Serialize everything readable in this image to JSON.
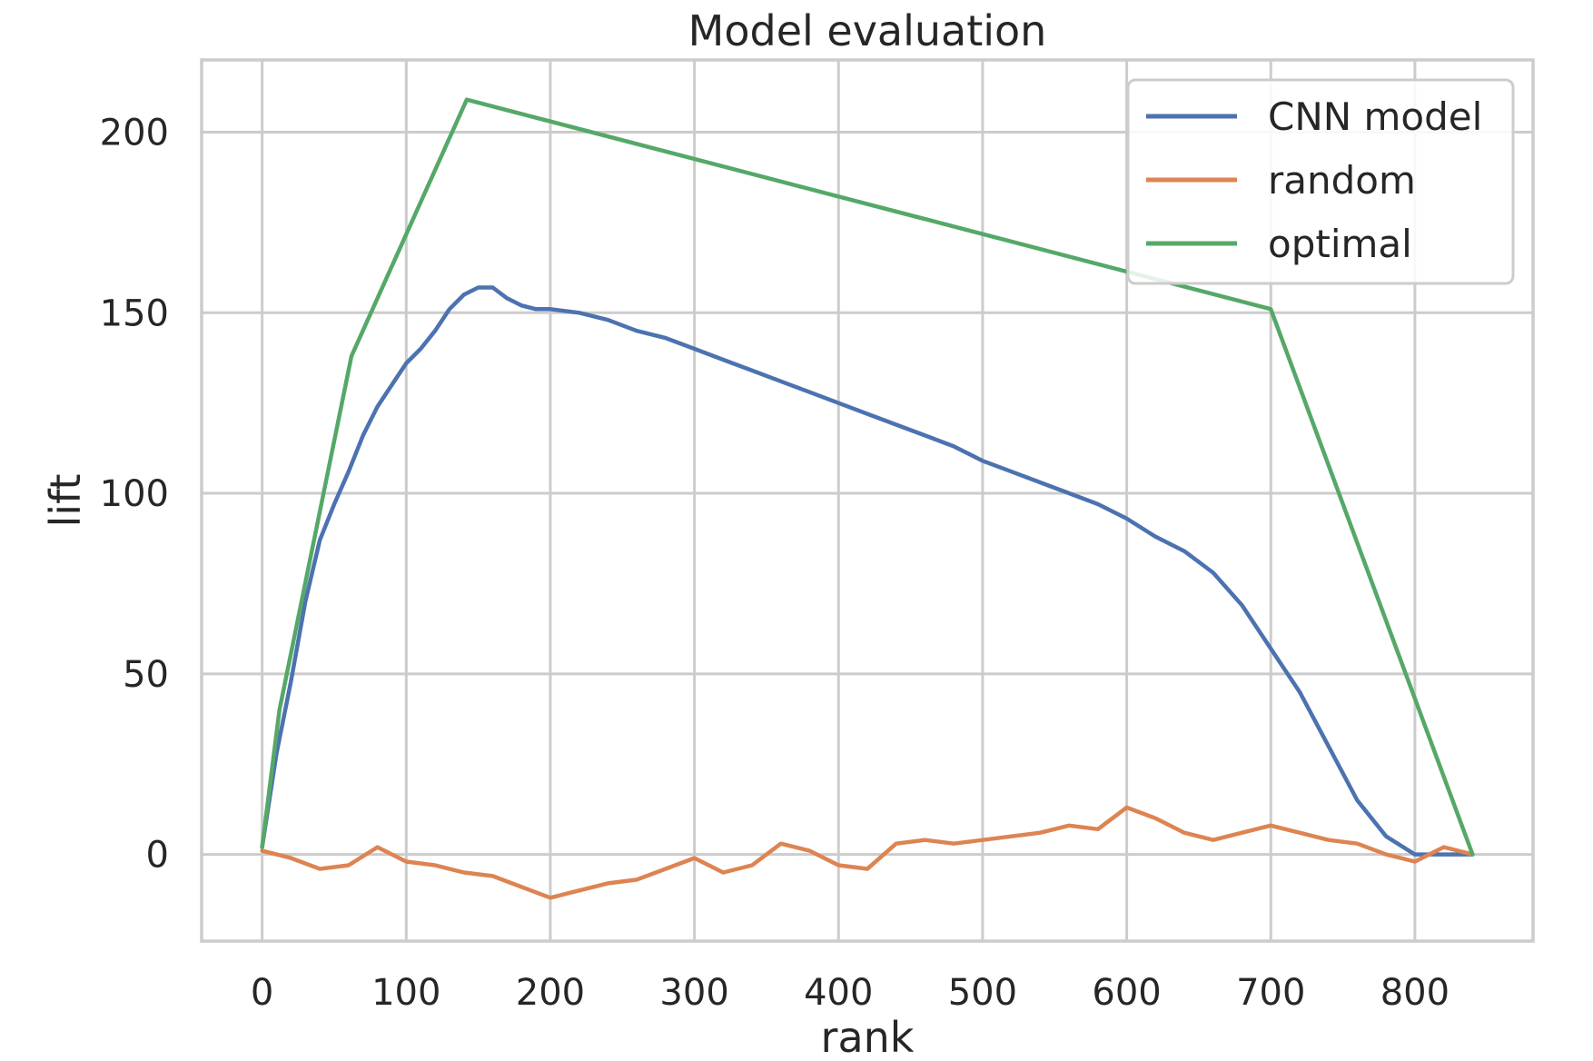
{
  "chart_data": {
    "type": "line",
    "title": "Model evaluation",
    "xlabel": "rank",
    "ylabel": "lift",
    "xlim": [
      -42,
      882
    ],
    "ylim": [
      -24,
      220
    ],
    "xticks": [
      0,
      100,
      200,
      300,
      400,
      500,
      600,
      700,
      800
    ],
    "yticks": [
      0,
      50,
      100,
      150,
      200
    ],
    "grid": true,
    "legend_position": "upper right",
    "colors": {
      "CNN model": "#4c72b0",
      "random": "#dd8452",
      "optimal": "#55a868",
      "grid": "#cccccc",
      "text": "#262626"
    },
    "series": [
      {
        "name": "CNN model",
        "x": [
          0,
          10,
          20,
          30,
          40,
          50,
          60,
          70,
          80,
          90,
          100,
          110,
          120,
          130,
          140,
          150,
          160,
          170,
          180,
          190,
          200,
          220,
          240,
          260,
          280,
          300,
          320,
          340,
          360,
          380,
          400,
          420,
          440,
          460,
          480,
          500,
          520,
          540,
          560,
          580,
          600,
          620,
          640,
          660,
          680,
          700,
          720,
          740,
          760,
          780,
          800,
          820,
          840
        ],
        "y": [
          2,
          28,
          48,
          70,
          87,
          97,
          106,
          116,
          124,
          130,
          136,
          140,
          145,
          151,
          155,
          157,
          157,
          154,
          152,
          151,
          151,
          150,
          148,
          145,
          143,
          140,
          137,
          134,
          131,
          128,
          125,
          122,
          119,
          116,
          113,
          109,
          106,
          103,
          100,
          97,
          93,
          88,
          84,
          78,
          69,
          57,
          45,
          30,
          15,
          5,
          0,
          0,
          0
        ]
      },
      {
        "name": "random",
        "x": [
          0,
          20,
          40,
          60,
          80,
          100,
          120,
          140,
          160,
          180,
          200,
          220,
          240,
          260,
          280,
          300,
          320,
          340,
          360,
          380,
          400,
          420,
          440,
          460,
          480,
          500,
          520,
          540,
          560,
          580,
          600,
          620,
          640,
          660,
          680,
          700,
          720,
          740,
          760,
          780,
          800,
          820,
          840
        ],
        "y": [
          1,
          -1,
          -4,
          -3,
          2,
          -2,
          -3,
          -5,
          -6,
          -9,
          -12,
          -10,
          -8,
          -7,
          -4,
          -1,
          -5,
          -3,
          3,
          1,
          -3,
          -4,
          3,
          4,
          3,
          4,
          5,
          6,
          8,
          7,
          13,
          10,
          6,
          4,
          6,
          8,
          6,
          4,
          3,
          0,
          -2,
          2,
          0
        ]
      },
      {
        "name": "optimal",
        "x": [
          0,
          12,
          62,
          142,
          700,
          840
        ],
        "y": [
          2,
          40,
          138,
          209,
          151,
          0
        ]
      }
    ]
  }
}
